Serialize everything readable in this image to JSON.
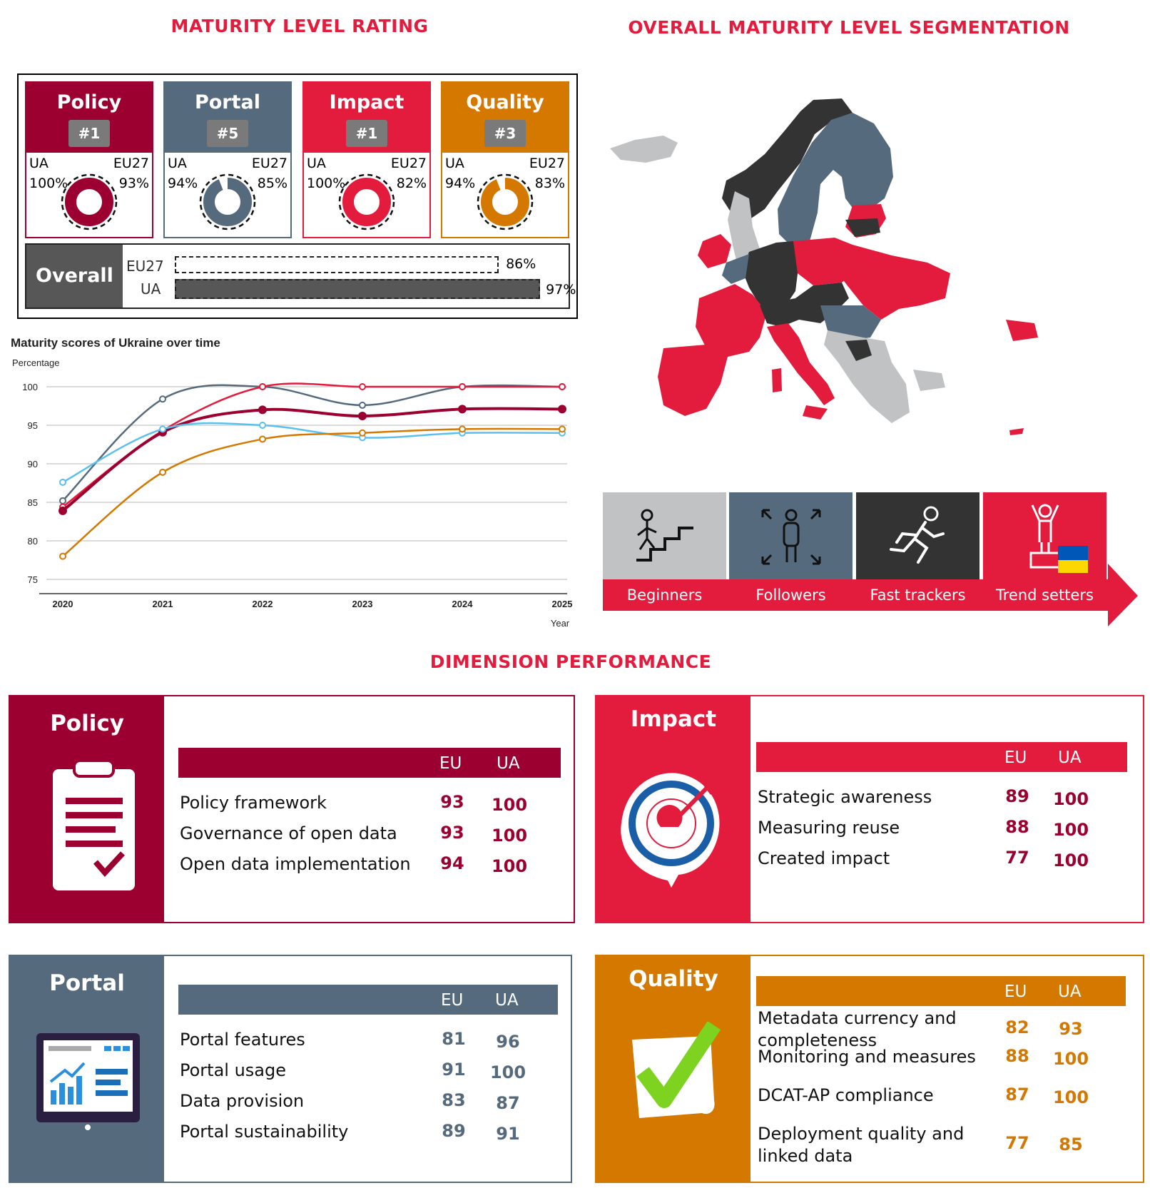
{
  "titles": {
    "rating": "MATURITY LEVEL RATING",
    "segmentation": "OVERALL MATURITY LEVEL SEGMENTATION",
    "dimension": "DIMENSION PERFORMANCE"
  },
  "rating_cards": [
    {
      "name": "Policy",
      "rank": "#1",
      "ua_label": "UA",
      "eu_label": "EU27",
      "ua": "100%",
      "eu": "93%",
      "ua_value": 100,
      "eu_value": 93,
      "color": "#9b0030"
    },
    {
      "name": "Portal",
      "rank": "#5",
      "ua_label": "UA",
      "eu_label": "EU27",
      "ua": "94%",
      "eu": "85%",
      "ua_value": 94,
      "eu_value": 85,
      "color": "#566a7d"
    },
    {
      "name": "Impact",
      "rank": "#1",
      "ua_label": "UA",
      "eu_label": "EU27",
      "ua": "100%",
      "eu": "82%",
      "ua_value": 100,
      "eu_value": 82,
      "color": "#e31c3d"
    },
    {
      "name": "Quality",
      "rank": "#3",
      "ua_label": "UA",
      "eu_label": "EU27",
      "ua": "94%",
      "eu": "83%",
      "ua_value": 94,
      "eu_value": 83,
      "color": "#d47800"
    }
  ],
  "overall": {
    "label": "Overall",
    "eu_label": "EU27",
    "ua_label": "UA",
    "eu": "86%",
    "ua": "97%",
    "eu_value": 86,
    "ua_value": 97
  },
  "chart_data": {
    "type": "line",
    "title": "Maturity scores of Ukraine over time",
    "ylabel": "Percentage",
    "xlabel": "Year",
    "x": [
      2020,
      2021,
      2022,
      2023,
      2024,
      2025
    ],
    "ylim": [
      75,
      100
    ],
    "yticks": [
      75,
      80,
      85,
      90,
      95,
      100
    ],
    "grid": true,
    "series": [
      {
        "color": "#566a7d",
        "values": [
          85.2,
          98.4,
          100,
          97.6,
          100,
          100
        ]
      },
      {
        "color": "#e31c3d",
        "values": [
          84.4,
          94.3,
          100,
          100,
          100,
          100
        ]
      },
      {
        "color": "#9b0030",
        "values": [
          83.9,
          94.1,
          97.0,
          96.2,
          97.1,
          97.1
        ]
      },
      {
        "color": "#5bc0eb",
        "values": [
          87.6,
          94.5,
          95.0,
          93.4,
          94.0,
          94.0
        ]
      },
      {
        "color": "#d47800",
        "values": [
          78.0,
          88.9,
          93.2,
          94.0,
          94.5,
          94.5
        ]
      }
    ]
  },
  "map": {
    "colors": {
      "beginners": "#c0c2c4",
      "followers": "#566a7d",
      "fast_trackers": "#333333",
      "trend_setters": "#e31c3d"
    }
  },
  "segments": [
    {
      "label": "Beginners",
      "icon": "stairs-climber-icon",
      "color": "#c0c2c4"
    },
    {
      "label": "Followers",
      "icon": "expanding-person-icon",
      "color": "#566a7d"
    },
    {
      "label": "Fast trackers",
      "icon": "runner-icon",
      "color": "#333333"
    },
    {
      "label": "Trend setters",
      "icon": "podium-winner-icon",
      "color": "#e31c3d"
    }
  ],
  "dimensions": {
    "policy": {
      "name": "Policy",
      "eu_label": "EU",
      "ua_label": "UA",
      "color": "#9b0030",
      "icon": "clipboard-icon",
      "rows": [
        {
          "label": "Policy framework",
          "eu": "93",
          "ua": "100"
        },
        {
          "label": "Governance of open data",
          "eu": "93",
          "ua": "100"
        },
        {
          "label": "Open data implementation",
          "eu": "94",
          "ua": "100"
        }
      ]
    },
    "impact": {
      "name": "Impact",
      "eu_label": "EU",
      "ua_label": "UA",
      "color": "#e31c3d",
      "icon": "target-icon",
      "rows": [
        {
          "label": "Strategic awareness",
          "eu": "89",
          "ua": "100"
        },
        {
          "label": "Measuring reuse",
          "eu": "88",
          "ua": "100"
        },
        {
          "label": "Created impact",
          "eu": "77",
          "ua": "100"
        }
      ]
    },
    "portal": {
      "name": "Portal",
      "eu_label": "EU",
      "ua_label": "UA",
      "color": "#566a7d",
      "icon": "dashboard-screen-icon",
      "rows": [
        {
          "label": "Portal features",
          "eu": "81",
          "ua": "96"
        },
        {
          "label": "Portal usage",
          "eu": "91",
          "ua": "100"
        },
        {
          "label": "Data provision",
          "eu": "83",
          "ua": "87"
        },
        {
          "label": "Portal sustainability",
          "eu": "89",
          "ua": "91"
        }
      ]
    },
    "quality": {
      "name": "Quality",
      "eu_label": "EU",
      "ua_label": "UA",
      "color": "#d47800",
      "icon": "checkmark-icon",
      "rows": [
        {
          "label": "Metadata currency and completeness",
          "eu": "82",
          "ua": "93"
        },
        {
          "label": "Monitoring and measures",
          "eu": "88",
          "ua": "100"
        },
        {
          "label": "DCAT-AP compliance",
          "eu": "87",
          "ua": "100"
        },
        {
          "label": "Deployment quality and linked data",
          "eu": "77",
          "ua": "85"
        }
      ]
    }
  }
}
